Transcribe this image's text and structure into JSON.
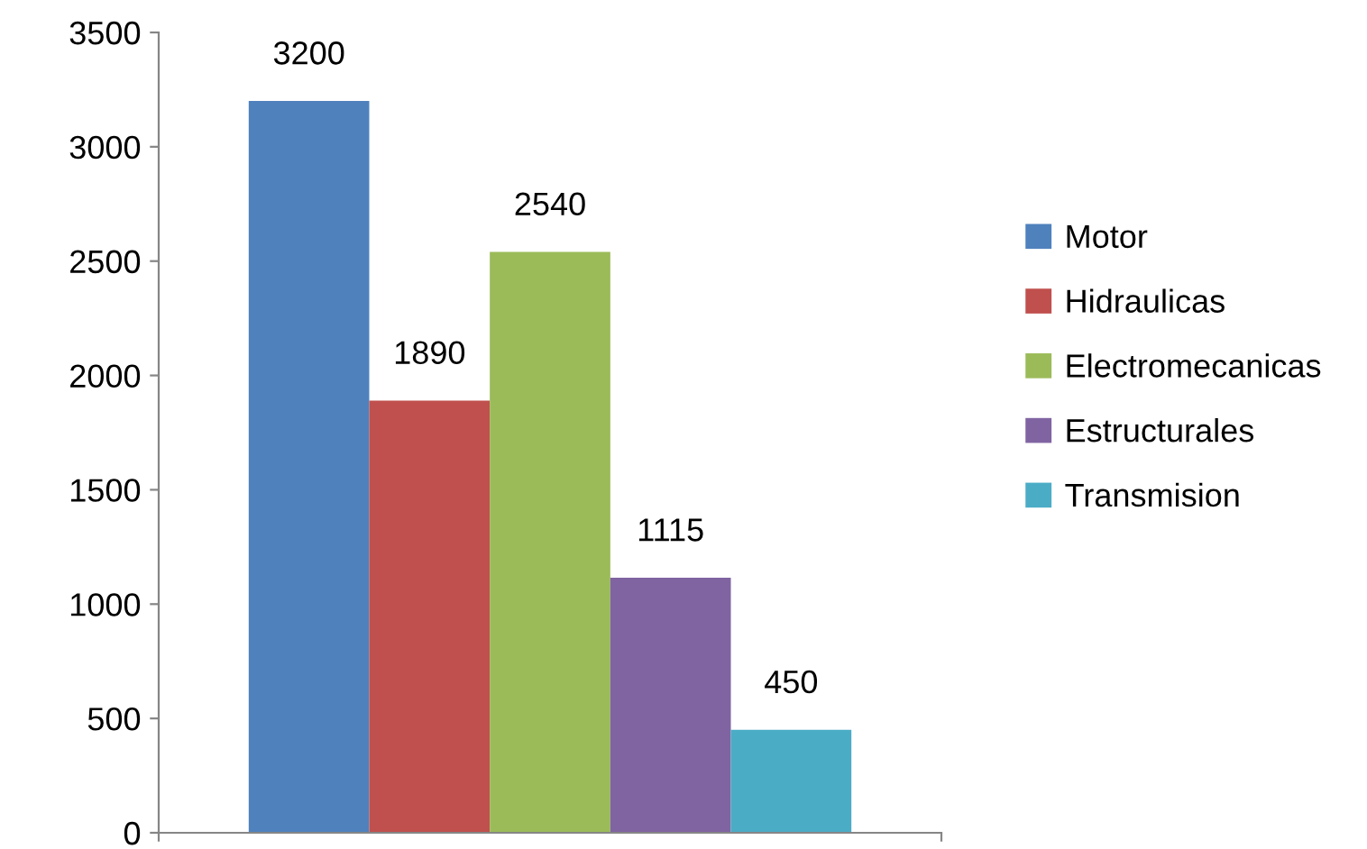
{
  "chart_data": {
    "type": "bar",
    "categories": [
      null
    ],
    "series": [
      {
        "name": "Motor",
        "color": "#4f81bd",
        "values": [
          3200
        ]
      },
      {
        "name": "Hidraulicas",
        "color": "#c0504d",
        "values": [
          1890
        ]
      },
      {
        "name": "Electromecanicas",
        "color": "#9bbb59",
        "values": [
          2540
        ]
      },
      {
        "name": "Estructurales",
        "color": "#8064a2",
        "values": [
          1115
        ]
      },
      {
        "name": "Transmision",
        "color": "#4bacc6",
        "values": [
          450
        ]
      }
    ],
    "ylim": [
      0,
      3500
    ],
    "yticks": [
      0,
      500,
      1000,
      1500,
      2000,
      2500,
      3000,
      3500
    ],
    "data_labels": true,
    "grid": false,
    "legend": "right"
  }
}
